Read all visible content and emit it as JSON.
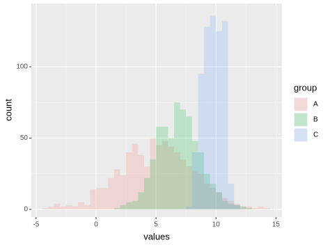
{
  "chart_data": {
    "type": "histogram",
    "x_label": "values",
    "y_label": "count",
    "legend_title": "group",
    "bins": [
      -4.5,
      -4,
      -3.5,
      -3,
      -2.5,
      -2,
      -1.5,
      -1,
      -0.5,
      0,
      0.5,
      1,
      1.5,
      2,
      2.5,
      3,
      3.5,
      4,
      4.5,
      5,
      5.5,
      6,
      6.5,
      7,
      7.5,
      8,
      8.5,
      9,
      9.5,
      10,
      10.5,
      11,
      11.5,
      12,
      12.5,
      13,
      13.5,
      14,
      14.5,
      15
    ],
    "series": [
      {
        "name": "A",
        "color": "#F8766D",
        "values": [
          1,
          2,
          4,
          2,
          3,
          2,
          5,
          3,
          14,
          15,
          15,
          22,
          28,
          24,
          40,
          46,
          38,
          30,
          50,
          45,
          48,
          44,
          40,
          35,
          30,
          27,
          25,
          18,
          15,
          12,
          8,
          6,
          4,
          2,
          2,
          1,
          2,
          1,
          0
        ]
      },
      {
        "name": "B",
        "color": "#00BA38",
        "values": [
          0,
          0,
          0,
          0,
          0,
          0,
          0,
          0,
          0,
          0,
          0,
          0,
          1,
          3,
          5,
          6,
          12,
          22,
          35,
          58,
          58,
          50,
          75,
          70,
          65,
          48,
          40,
          25,
          18,
          12,
          6,
          4,
          3,
          2,
          1,
          0,
          0,
          0,
          0
        ]
      },
      {
        "name": "C",
        "color": "#619CFF",
        "values": [
          0,
          0,
          0,
          0,
          0,
          0,
          0,
          0,
          0,
          0,
          0,
          0,
          0,
          0,
          0,
          0,
          0,
          0,
          0,
          0,
          0,
          0,
          0,
          0,
          2,
          40,
          95,
          128,
          136,
          125,
          132,
          18,
          3,
          0,
          0,
          0,
          0,
          0,
          0
        ]
      }
    ],
    "xlim": [
      -5.4,
      15.5
    ],
    "xticks": [
      -5,
      0,
      5,
      10,
      15
    ],
    "ylim": [
      -5.4,
      144.4
    ],
    "yticks": [
      0,
      50,
      100
    ],
    "grid": true,
    "legend": "right",
    "opacity": 0.2
  }
}
